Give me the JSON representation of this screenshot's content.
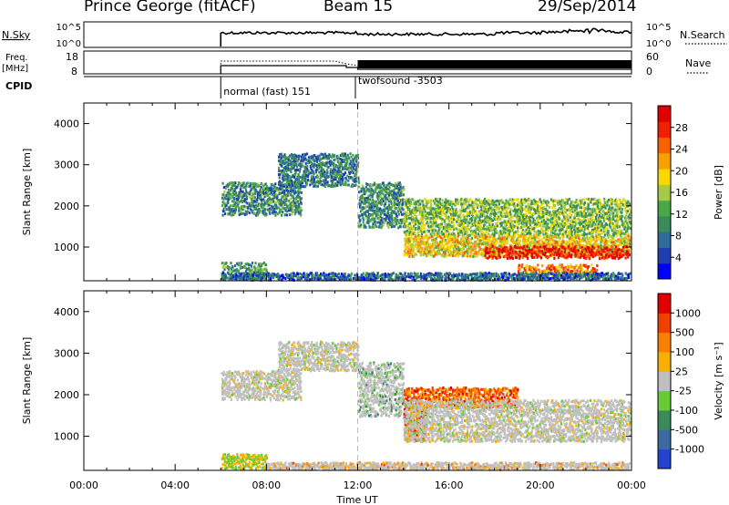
{
  "header": {
    "station": "Prince George (fitACF)",
    "beam": "Beam 15",
    "date": "29/Sep/2014"
  },
  "top_panels": {
    "nsky_label": "N.Sky",
    "nsky_ticks": [
      "10^5",
      "10^0"
    ],
    "nsearch_label": "N.Search",
    "nsearch_ticks": [
      "10^5",
      "10^0"
    ],
    "freq_label": "Freq.",
    "freq_unit": "[MHz]",
    "freq_ticks": [
      "18",
      "8"
    ],
    "nave_label": "Nave",
    "nave_ticks": [
      "60",
      "0"
    ],
    "cpid_label": "CPID",
    "cpid_modes": [
      {
        "name": "normal (fast) 151",
        "start_hour": 6.0,
        "end_hour": 11.9
      },
      {
        "name": "twofsound -3503",
        "start_hour": 11.9,
        "end_hour": 24.0
      }
    ]
  },
  "chart_data": [
    {
      "type": "heatmap",
      "title": "",
      "ylabel": "Slant Range [km]",
      "xlabel": "Time UT",
      "x_ticks": [
        "00:00",
        "04:00",
        "08:00",
        "12:00",
        "16:00",
        "20:00",
        "00:00"
      ],
      "xlim_hours": [
        0,
        24
      ],
      "ylim_km": [
        180,
        4500
      ],
      "y_ticks": [
        1000,
        2000,
        3000,
        4000
      ],
      "colorbar": {
        "label": "Power [dB]",
        "ticks": [
          "28",
          "24",
          "20",
          "16",
          "12",
          "8",
          "4"
        ],
        "colors": [
          "#0000ff",
          "#1f3fb0",
          "#2e6b9c",
          "#3a8a5a",
          "#48a848",
          "#a8c848",
          "#f8d800",
          "#f8a000",
          "#f86000",
          "#f02000",
          "#e00000"
        ]
      },
      "regions": [
        {
          "t0": 6.0,
          "t1": 9.5,
          "r0": 1800,
          "r1": 2600,
          "level": 0.3
        },
        {
          "t0": 8.5,
          "t1": 12.0,
          "r0": 2500,
          "r1": 3300,
          "level": 0.25
        },
        {
          "t0": 6.0,
          "t1": 8.0,
          "r0": 250,
          "r1": 650,
          "level": 0.35
        },
        {
          "t0": 12.0,
          "t1": 14.0,
          "r0": 1500,
          "r1": 2600,
          "level": 0.3
        },
        {
          "t0": 14.0,
          "t1": 24.0,
          "r0": 1300,
          "r1": 2200,
          "level": 0.45
        },
        {
          "t0": 14.0,
          "t1": 24.0,
          "r0": 800,
          "r1": 1300,
          "level": 0.6
        },
        {
          "t0": 17.5,
          "t1": 24.0,
          "r0": 750,
          "r1": 1050,
          "level": 0.95
        },
        {
          "t0": 19.0,
          "t1": 22.5,
          "r0": 300,
          "r1": 600,
          "level": 0.75
        },
        {
          "t0": 6.0,
          "t1": 24.0,
          "r0": 200,
          "r1": 400,
          "level": 0.2
        }
      ]
    },
    {
      "type": "heatmap",
      "title": "",
      "ylabel": "Slant Range [km]",
      "xlabel": "Time UT",
      "x_ticks": [
        "00:00",
        "04:00",
        "08:00",
        "12:00",
        "16:00",
        "20:00",
        "00:00"
      ],
      "xlim_hours": [
        0,
        24
      ],
      "ylim_km": [
        180,
        4500
      ],
      "y_ticks": [
        1000,
        2000,
        3000,
        4000
      ],
      "colorbar": {
        "label": "Velocity [m s⁻¹]",
        "ticks": [
          "1000",
          "500",
          "100",
          "25",
          "-25",
          "-100",
          "-500",
          "-1000"
        ],
        "colors": [
          "#2244cc",
          "#3a6aa0",
          "#3a8a5a",
          "#66cc33",
          "#c0c0c0",
          "#f8b000",
          "#f88000",
          "#f04000",
          "#e00000"
        ]
      },
      "regions": [
        {
          "t0": 6.0,
          "t1": 9.5,
          "r0": 1900,
          "r1": 2600,
          "level": 0.5
        },
        {
          "t0": 8.5,
          "t1": 12.0,
          "r0": 2600,
          "r1": 3300,
          "level": 0.5
        },
        {
          "t0": 12.0,
          "t1": 14.0,
          "r0": 1500,
          "r1": 2800,
          "level": 0.35
        },
        {
          "t0": 14.0,
          "t1": 15.0,
          "r0": 900,
          "r1": 2200,
          "level": 0.8
        },
        {
          "t0": 15.0,
          "t1": 19.0,
          "r0": 1700,
          "r1": 2200,
          "level": 0.75
        },
        {
          "t0": 14.0,
          "t1": 24.0,
          "r0": 900,
          "r1": 1900,
          "level": 0.5
        },
        {
          "t0": 6.0,
          "t1": 8.0,
          "r0": 250,
          "r1": 600,
          "level": 0.25
        },
        {
          "t0": 8.0,
          "t1": 24.0,
          "r0": 200,
          "r1": 400,
          "level": 0.65
        }
      ]
    }
  ]
}
